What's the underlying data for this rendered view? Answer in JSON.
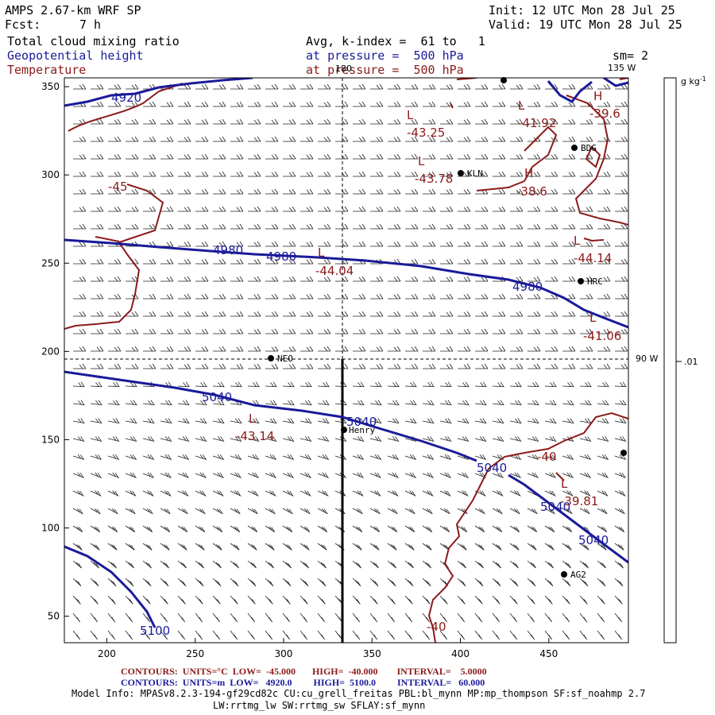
{
  "header": {
    "model": "AMPS 2.67-km WRF SP",
    "fcst_label": "Fcst:",
    "fcst_value": "7 h",
    "init": "Init: 12 UTC Mon 28 Jul 25",
    "valid": "Valid: 19 UTC Mon 28 Jul 25",
    "field1": "Total cloud mixing ratio",
    "field2": "Geopotential height",
    "field3": "Temperature",
    "avg": "Avg, k-index =  61 to   1",
    "pressure1": "at pressure =  500 hPa",
    "pressure2": "at pressure =  500 hPa",
    "sm": "sm= 2"
  },
  "colors": {
    "height_contour": "#1a1a9a",
    "temperature_contour": "#8b1a1a",
    "wind_barb": "#222222",
    "axis": "#000000"
  },
  "axes": {
    "x_ticks": [
      "200",
      "250",
      "300",
      "350",
      "400",
      "450"
    ],
    "y_ticks": [
      "50",
      "100",
      "150",
      "200",
      "250",
      "300",
      "350"
    ],
    "x_range": [
      176,
      495
    ],
    "y_range": [
      35,
      355
    ]
  },
  "map_labels": {
    "meridian_180": "180",
    "meridian_135w": "135 W",
    "meridian_90w": "90 W",
    "stations": [
      {
        "name": "KLN"
      },
      {
        "name": "BDG"
      },
      {
        "name": "HRC"
      },
      {
        "name": "NEO"
      },
      {
        "name": "Henry"
      },
      {
        "name": "AG2"
      }
    ],
    "height_labels": [
      "4920",
      "4980",
      "4980",
      "4980",
      "5040",
      "5040",
      "5040",
      "5040",
      "5040",
      "5100"
    ],
    "temp_labels": [
      "-43.25",
      "-41.92",
      "-39.6",
      "-43.78",
      "-38.6",
      "-44.04",
      "-44.14",
      "-41.06",
      "-43.14",
      "-40",
      "-39.81",
      "-40",
      "-45"
    ],
    "extrema": [
      "L",
      "L",
      "H",
      "L",
      "H",
      "L",
      "L",
      "L",
      "L",
      "L"
    ]
  },
  "colorbar": {
    "unit": "g kg",
    "unit_exp": "-1",
    "value": ".01"
  },
  "footer": {
    "contours_temp": "CONTOURS:  UNITS=°C  LOW=  -45.000       HIGH=  -40.000        INTERVAL=    5.0000",
    "contours_hgt": "CONTOURS:  UNITS=m  LOW=   4920.0         HIGH=  5100.0         INTERVAL=   60.000",
    "model_info": "Model Info: MPASv8.2.3-194-gf29cd82c CU:cu_grell_freitas PBL:bl_mynn MP:mp_thompson SF:sf_noahmp 2.7",
    "physics": "LW:rrtmg_lw SW:rrtmg_sw SFLAY:sf_mynn"
  }
}
